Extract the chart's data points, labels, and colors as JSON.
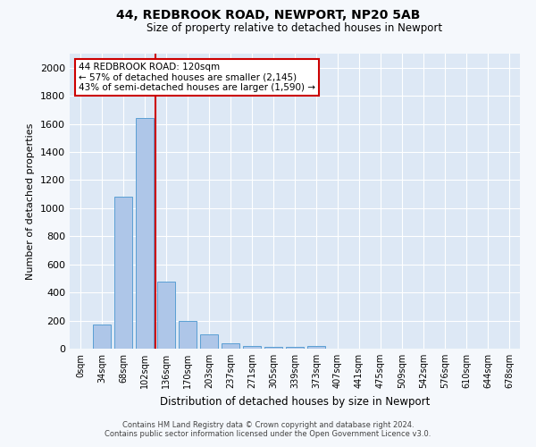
{
  "title": "44, REDBROOK ROAD, NEWPORT, NP20 5AB",
  "subtitle": "Size of property relative to detached houses in Newport",
  "xlabel": "Distribution of detached houses by size in Newport",
  "ylabel": "Number of detached properties",
  "footnote1": "Contains HM Land Registry data © Crown copyright and database right 2024.",
  "footnote2": "Contains public sector information licensed under the Open Government Licence v3.0.",
  "bar_labels": [
    "0sqm",
    "34sqm",
    "68sqm",
    "102sqm",
    "136sqm",
    "170sqm",
    "203sqm",
    "237sqm",
    "271sqm",
    "305sqm",
    "339sqm",
    "373sqm",
    "407sqm",
    "441sqm",
    "475sqm",
    "509sqm",
    "542sqm",
    "576sqm",
    "610sqm",
    "644sqm",
    "678sqm"
  ],
  "bar_values": [
    0,
    170,
    1080,
    1640,
    480,
    200,
    100,
    40,
    20,
    12,
    12,
    20,
    0,
    0,
    0,
    0,
    0,
    0,
    0,
    0,
    0
  ],
  "bar_color": "#aec6e8",
  "bar_edge_color": "#5a9fd4",
  "fig_background_color": "#f5f8fc",
  "ax_background_color": "#dde8f5",
  "grid_color": "#ffffff",
  "red_line_x": 3.5,
  "annotation_text": "44 REDBROOK ROAD: 120sqm\n← 57% of detached houses are smaller (2,145)\n43% of semi-detached houses are larger (1,590) →",
  "annotation_box_color": "#ffffff",
  "annotation_box_edge_color": "#cc0000",
  "ylim": [
    0,
    2100
  ],
  "yticks": [
    0,
    200,
    400,
    600,
    800,
    1000,
    1200,
    1400,
    1600,
    1800,
    2000
  ]
}
